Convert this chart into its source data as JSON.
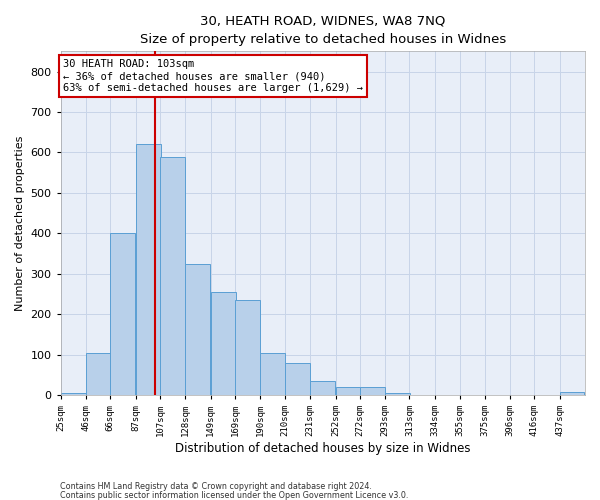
{
  "title1": "30, HEATH ROAD, WIDNES, WA8 7NQ",
  "title2": "Size of property relative to detached houses in Widnes",
  "xlabel": "Distribution of detached houses by size in Widnes",
  "ylabel": "Number of detached properties",
  "footer1": "Contains HM Land Registry data © Crown copyright and database right 2024.",
  "footer2": "Contains public sector information licensed under the Open Government Licence v3.0.",
  "annotation_line1": "30 HEATH ROAD: 103sqm",
  "annotation_line2": "← 36% of detached houses are smaller (940)",
  "annotation_line3": "63% of semi-detached houses are larger (1,629) →",
  "property_size": 103,
  "bin_starts": [
    25,
    46,
    66,
    87,
    107,
    128,
    149,
    169,
    190,
    210,
    231,
    252,
    272,
    293,
    313,
    334,
    355,
    375,
    396,
    416,
    437
  ],
  "bar_heights": [
    5,
    105,
    400,
    620,
    590,
    325,
    255,
    235,
    105,
    80,
    35,
    20,
    20,
    5,
    0,
    0,
    0,
    0,
    0,
    0,
    8
  ],
  "bar_color": "#b8d0ea",
  "bar_edge_color": "#5a9fd4",
  "red_line_color": "#cc0000",
  "annotation_box_color": "#cc0000",
  "grid_color": "#c8d4e8",
  "bg_color": "#e8eef8",
  "ylim": [
    0,
    850
  ],
  "yticks": [
    0,
    100,
    200,
    300,
    400,
    500,
    600,
    700,
    800
  ],
  "tick_labels": [
    "25sqm",
    "46sqm",
    "66sqm",
    "87sqm",
    "107sqm",
    "128sqm",
    "149sqm",
    "169sqm",
    "190sqm",
    "210sqm",
    "231sqm",
    "252sqm",
    "272sqm",
    "293sqm",
    "313sqm",
    "334sqm",
    "355sqm",
    "375sqm",
    "396sqm",
    "416sqm",
    "437sqm"
  ],
  "figsize": [
    6.0,
    5.0
  ],
  "dpi": 100
}
